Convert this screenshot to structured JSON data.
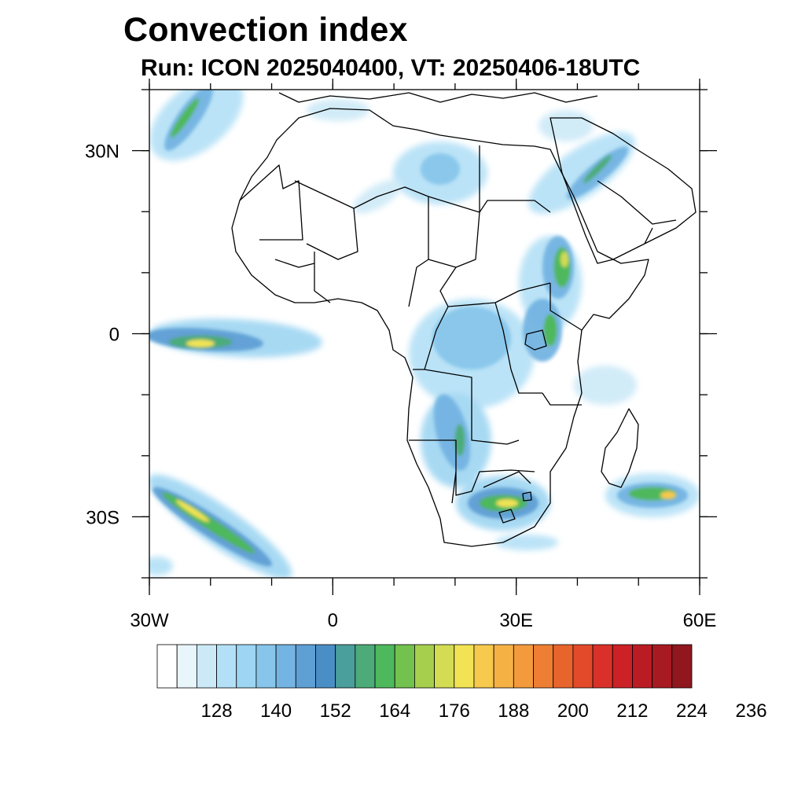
{
  "header": {
    "title": "Convection index",
    "subtitle": "Run: ICON 2025040400,  VT: 20250406-18UTC"
  },
  "map": {
    "lon_range": [
      -30,
      60
    ],
    "lat_range": [
      -40,
      40
    ],
    "lon_ticks": [
      {
        "value": -30,
        "label": "30W"
      },
      {
        "value": 0,
        "label": "0"
      },
      {
        "value": 30,
        "label": "30E"
      },
      {
        "value": 60,
        "label": "60E"
      }
    ],
    "lat_ticks": [
      {
        "value": 30,
        "label": "30N"
      },
      {
        "value": 0,
        "label": "0"
      },
      {
        "value": -30,
        "label": "30S"
      }
    ],
    "minor_lon_step": 10,
    "minor_lat_step": 10
  },
  "colorbar": {
    "labels": [
      "128",
      "140",
      "152",
      "164",
      "176",
      "188",
      "200",
      "212",
      "224",
      "236"
    ],
    "colors": [
      "#ffffff",
      "#e8f5fb",
      "#cce9f7",
      "#b3e0f6",
      "#9dd5f2",
      "#87c6ea",
      "#73b4e2",
      "#5e9fd4",
      "#4a8ec6",
      "#4a9e9c",
      "#4cab78",
      "#4db85c",
      "#73c14e",
      "#a6cf4e",
      "#d3dc52",
      "#f1e354",
      "#f7c94c",
      "#f6b145",
      "#f39a3c",
      "#ee7e33",
      "#e8642d",
      "#e24a2a",
      "#d93129",
      "#cc2127",
      "#bb1c24",
      "#a81a21",
      "#8f171d"
    ]
  }
}
